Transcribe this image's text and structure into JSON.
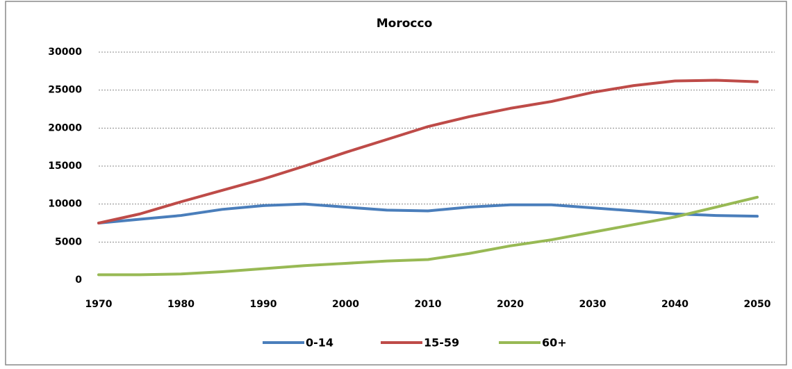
{
  "chart_data": {
    "type": "line",
    "title": "Morocco",
    "x": [
      1970,
      1975,
      1980,
      1985,
      1990,
      1995,
      2000,
      2005,
      2010,
      2015,
      2020,
      2025,
      2030,
      2035,
      2040,
      2045,
      2050
    ],
    "series": [
      {
        "name": "0-14",
        "color": "#4a7ebb",
        "values": [
          7500,
          8000,
          8500,
          9300,
          9800,
          10000,
          9600,
          9200,
          9100,
          9600,
          9900,
          9900,
          9500,
          9100,
          8700,
          8500,
          8400
        ]
      },
      {
        "name": "15-59",
        "color": "#be4b48",
        "values": [
          7500,
          8700,
          10300,
          11800,
          13300,
          15000,
          16800,
          18500,
          20200,
          21500,
          22600,
          23500,
          24700,
          25600,
          26200,
          26300,
          26100
        ]
      },
      {
        "name": "60+",
        "color": "#98b954",
        "values": [
          700,
          700,
          800,
          1100,
          1500,
          1900,
          2200,
          2500,
          2700,
          3500,
          4500,
          5300,
          6300,
          7300,
          8300,
          9600,
          10900
        ]
      }
    ],
    "xlim": [
      1970,
      2050
    ],
    "xticks": [
      1970,
      1980,
      1990,
      2000,
      2010,
      2020,
      2030,
      2040,
      2050
    ],
    "ylim": [
      0,
      30000
    ],
    "yticks": [
      0,
      5000,
      10000,
      15000,
      20000,
      25000,
      30000
    ],
    "grid": true,
    "legend": "bottom"
  }
}
